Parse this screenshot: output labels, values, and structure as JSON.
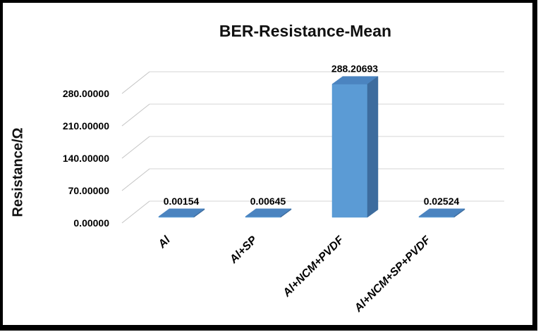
{
  "window": {
    "background": "#FFFFFF",
    "frame_color": "#000000"
  },
  "chart_data": {
    "type": "bar",
    "style": "3d-column",
    "title": "BER-Resistance-Mean",
    "ylabel": "Resistance/Ω",
    "xlabel": "",
    "categories": [
      "Al",
      "Al+SP",
      "Al+NCM+PVDF",
      "Al+NCM+SP+PVDF"
    ],
    "values": [
      0.00154,
      0.00645,
      288.20693,
      0.02524
    ],
    "data_labels": [
      "0.00154",
      "0.00645",
      "288.20693",
      "0.02524"
    ],
    "yticks": [
      {
        "value": 0,
        "label": "0.00000"
      },
      {
        "value": 70,
        "label": "70.00000"
      },
      {
        "value": 140,
        "label": "140.00000"
      },
      {
        "value": 210,
        "label": "210.00000"
      },
      {
        "value": 280,
        "label": "280.00000"
      }
    ],
    "ylim": [
      0,
      315
    ],
    "grid": true,
    "legend": "none",
    "colors": {
      "bar_front": "#5B9BD5",
      "bar_top": "#4B84C0",
      "bar_side": "#3D6C9E",
      "grid_line": "#D4D4D4",
      "axis_diagonal": "#C4C4C4",
      "text": "#000000"
    }
  }
}
